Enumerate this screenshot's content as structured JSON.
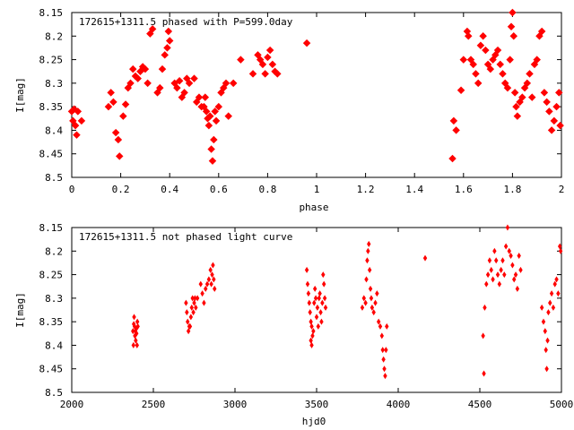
{
  "chart_data": [
    {
      "type": "scatter",
      "title": "172615+1311.5 phased with P=599.0day",
      "xlabel": "phase",
      "ylabel": "I[mag]",
      "xlim": [
        0,
        2
      ],
      "ylim": [
        8.5,
        8.15
      ],
      "y_inverted": true,
      "x_ticks": [
        "0",
        "0.2",
        "0.4",
        "0.6",
        "0.8",
        "1",
        "1.2",
        "1.4",
        "1.6",
        "1.8",
        "2"
      ],
      "x_tick_values": [
        0,
        0.2,
        0.4,
        0.6,
        0.8,
        1.0,
        1.2,
        1.4,
        1.6,
        1.8,
        2.0
      ],
      "y_ticks": [
        "8.15",
        "8.2",
        "8.25",
        "8.3",
        "8.35",
        "8.4",
        "8.45",
        "8.5"
      ],
      "y_tick_values": [
        8.15,
        8.2,
        8.25,
        8.3,
        8.35,
        8.4,
        8.45,
        8.5
      ],
      "marker": "square",
      "color": "#ff0000",
      "grid": false,
      "series": [
        {
          "values": [
            [
              0.0,
              8.36
            ],
            [
              0.005,
              8.38
            ],
            [
              0.01,
              8.355
            ],
            [
              0.015,
              8.39
            ],
            [
              0.02,
              8.41
            ],
            [
              0.025,
              8.36
            ],
            [
              0.04,
              8.38
            ],
            [
              0.15,
              8.35
            ],
            [
              0.16,
              8.32
            ],
            [
              0.17,
              8.34
            ],
            [
              0.18,
              8.405
            ],
            [
              0.19,
              8.42
            ],
            [
              0.195,
              8.455
            ],
            [
              0.21,
              8.37
            ],
            [
              0.22,
              8.345
            ],
            [
              0.23,
              8.31
            ],
            [
              0.24,
              8.3
            ],
            [
              0.25,
              8.27
            ],
            [
              0.26,
              8.285
            ],
            [
              0.27,
              8.29
            ],
            [
              0.28,
              8.275
            ],
            [
              0.29,
              8.265
            ],
            [
              0.3,
              8.27
            ],
            [
              0.31,
              8.3
            ],
            [
              0.32,
              8.195
            ],
            [
              0.33,
              8.185
            ],
            [
              0.35,
              8.32
            ],
            [
              0.36,
              8.31
            ],
            [
              0.37,
              8.27
            ],
            [
              0.38,
              8.24
            ],
            [
              0.39,
              8.225
            ],
            [
              0.395,
              8.19
            ],
            [
              0.4,
              8.21
            ],
            [
              0.42,
              8.3
            ],
            [
              0.43,
              8.31
            ],
            [
              0.44,
              8.295
            ],
            [
              0.45,
              8.33
            ],
            [
              0.46,
              8.32
            ],
            [
              0.47,
              8.29
            ],
            [
              0.48,
              8.3
            ],
            [
              0.5,
              8.29
            ],
            [
              0.51,
              8.34
            ],
            [
              0.52,
              8.33
            ],
            [
              0.53,
              8.35
            ],
            [
              0.54,
              8.35
            ],
            [
              0.545,
              8.33
            ],
            [
              0.55,
              8.36
            ],
            [
              0.555,
              8.375
            ],
            [
              0.56,
              8.39
            ],
            [
              0.565,
              8.37
            ],
            [
              0.57,
              8.44
            ],
            [
              0.575,
              8.465
            ],
            [
              0.58,
              8.42
            ],
            [
              0.585,
              8.36
            ],
            [
              0.59,
              8.38
            ],
            [
              0.6,
              8.35
            ],
            [
              0.61,
              8.32
            ],
            [
              0.62,
              8.31
            ],
            [
              0.63,
              8.3
            ],
            [
              0.64,
              8.37
            ],
            [
              0.66,
              8.3
            ],
            [
              0.69,
              8.25
            ],
            [
              0.74,
              8.28
            ],
            [
              0.76,
              8.24
            ],
            [
              0.77,
              8.25
            ],
            [
              0.78,
              8.26
            ],
            [
              0.79,
              8.28
            ],
            [
              0.8,
              8.245
            ],
            [
              0.81,
              8.23
            ],
            [
              0.82,
              8.26
            ],
            [
              0.83,
              8.275
            ],
            [
              0.84,
              8.28
            ],
            [
              0.96,
              8.215
            ],
            [
              1.555,
              8.46
            ],
            [
              1.56,
              8.38
            ],
            [
              1.57,
              8.4
            ],
            [
              1.59,
              8.315
            ],
            [
              1.6,
              8.25
            ],
            [
              1.615,
              8.19
            ],
            [
              1.62,
              8.2
            ],
            [
              1.63,
              8.25
            ],
            [
              1.64,
              8.26
            ],
            [
              1.65,
              8.28
            ],
            [
              1.66,
              8.3
            ],
            [
              1.67,
              8.22
            ],
            [
              1.68,
              8.2
            ],
            [
              1.69,
              8.23
            ],
            [
              1.7,
              8.26
            ],
            [
              1.71,
              8.27
            ],
            [
              1.72,
              8.25
            ],
            [
              1.73,
              8.24
            ],
            [
              1.74,
              8.23
            ],
            [
              1.75,
              8.26
            ],
            [
              1.76,
              8.28
            ],
            [
              1.77,
              8.3
            ],
            [
              1.78,
              8.31
            ],
            [
              1.79,
              8.25
            ],
            [
              1.795,
              8.18
            ],
            [
              1.8,
              8.15
            ],
            [
              1.805,
              8.2
            ],
            [
              1.81,
              8.32
            ],
            [
              1.815,
              8.35
            ],
            [
              1.82,
              8.37
            ],
            [
              1.83,
              8.34
            ],
            [
              1.84,
              8.33
            ],
            [
              1.85,
              8.31
            ],
            [
              1.86,
              8.3
            ],
            [
              1.87,
              8.28
            ],
            [
              1.88,
              8.33
            ],
            [
              1.89,
              8.26
            ],
            [
              1.9,
              8.25
            ],
            [
              1.91,
              8.2
            ],
            [
              1.92,
              8.19
            ],
            [
              1.93,
              8.32
            ],
            [
              1.94,
              8.34
            ],
            [
              1.95,
              8.36
            ],
            [
              1.96,
              8.4
            ],
            [
              1.97,
              8.38
            ],
            [
              1.98,
              8.35
            ],
            [
              1.99,
              8.32
            ],
            [
              1.995,
              8.39
            ]
          ]
        }
      ]
    },
    {
      "type": "scatter",
      "title": "172615+1311.5 not phased light curve",
      "xlabel": "hjd0",
      "ylabel": "I[mag]",
      "xlim": [
        2000,
        5000
      ],
      "ylim": [
        8.5,
        8.15
      ],
      "y_inverted": true,
      "x_ticks": [
        "2000",
        "2500",
        "3000",
        "3500",
        "4000",
        "4500",
        "5000"
      ],
      "x_tick_values": [
        2000,
        2500,
        3000,
        3500,
        4000,
        4500,
        5000
      ],
      "y_ticks": [
        "8.15",
        "8.2",
        "8.25",
        "8.3",
        "8.35",
        "8.4",
        "8.45",
        "8.5"
      ],
      "y_tick_values": [
        8.15,
        8.2,
        8.25,
        8.3,
        8.35,
        8.4,
        8.45,
        8.5
      ],
      "marker": "diamond",
      "color": "#ff0000",
      "grid": false,
      "series": [
        {
          "values": [
            [
              2375,
              8.37
            ],
            [
              2378,
              8.4
            ],
            [
              2380,
              8.355
            ],
            [
              2382,
              8.34
            ],
            [
              2385,
              8.36
            ],
            [
              2387,
              8.38
            ],
            [
              2390,
              8.37
            ],
            [
              2392,
              8.39
            ],
            [
              2395,
              8.365
            ],
            [
              2397,
              8.375
            ],
            [
              2400,
              8.4
            ],
            [
              2402,
              8.35
            ],
            [
              2405,
              8.36
            ],
            [
              2700,
              8.31
            ],
            [
              2705,
              8.33
            ],
            [
              2710,
              8.35
            ],
            [
              2715,
              8.37
            ],
            [
              2720,
              8.36
            ],
            [
              2725,
              8.36
            ],
            [
              2730,
              8.34
            ],
            [
              2735,
              8.32
            ],
            [
              2740,
              8.3
            ],
            [
              2745,
              8.33
            ],
            [
              2750,
              8.31
            ],
            [
              2755,
              8.3
            ],
            [
              2760,
              8.32
            ],
            [
              2770,
              8.3
            ],
            [
              2790,
              8.27
            ],
            [
              2800,
              8.29
            ],
            [
              2810,
              8.31
            ],
            [
              2820,
              8.28
            ],
            [
              2830,
              8.27
            ],
            [
              2840,
              8.26
            ],
            [
              2850,
              8.24
            ],
            [
              2855,
              8.27
            ],
            [
              2860,
              8.25
            ],
            [
              2865,
              8.23
            ],
            [
              2870,
              8.26
            ],
            [
              2875,
              8.28
            ],
            [
              3440,
              8.24
            ],
            [
              3445,
              8.27
            ],
            [
              3450,
              8.29
            ],
            [
              3455,
              8.31
            ],
            [
              3460,
              8.33
            ],
            [
              3465,
              8.35
            ],
            [
              3470,
              8.36
            ],
            [
              3475,
              8.38
            ],
            [
              3480,
              8.37
            ],
            [
              3485,
              8.31
            ],
            [
              3490,
              8.28
            ],
            [
              3495,
              8.3
            ],
            [
              3500,
              8.34
            ],
            [
              3505,
              8.32
            ],
            [
              3510,
              8.36
            ],
            [
              3515,
              8.3
            ],
            [
              3520,
              8.29
            ],
            [
              3525,
              8.33
            ],
            [
              3530,
              8.35
            ],
            [
              3535,
              8.31
            ],
            [
              3540,
              8.25
            ],
            [
              3545,
              8.27
            ],
            [
              3550,
              8.3
            ],
            [
              3555,
              8.32
            ],
            [
              3470,
              8.4
            ],
            [
              3465,
              8.39
            ],
            [
              3780,
              8.32
            ],
            [
              3790,
              8.3
            ],
            [
              3800,
              8.31
            ],
            [
              3805,
              8.26
            ],
            [
              3810,
              8.22
            ],
            [
              3815,
              8.2
            ],
            [
              3820,
              8.185
            ],
            [
              3825,
              8.24
            ],
            [
              3830,
              8.28
            ],
            [
              3835,
              8.3
            ],
            [
              3840,
              8.32
            ],
            [
              3850,
              8.33
            ],
            [
              3860,
              8.31
            ],
            [
              3870,
              8.29
            ],
            [
              3880,
              8.35
            ],
            [
              3890,
              8.36
            ],
            [
              3900,
              8.38
            ],
            [
              3905,
              8.41
            ],
            [
              3910,
              8.43
            ],
            [
              3915,
              8.45
            ],
            [
              3920,
              8.465
            ],
            [
              3925,
              8.41
            ],
            [
              3930,
              8.36
            ],
            [
              4165,
              8.215
            ],
            [
              4520,
              8.38
            ],
            [
              4525,
              8.46
            ],
            [
              4530,
              8.32
            ],
            [
              4540,
              8.27
            ],
            [
              4550,
              8.25
            ],
            [
              4560,
              8.22
            ],
            [
              4570,
              8.24
            ],
            [
              4580,
              8.26
            ],
            [
              4590,
              8.2
            ],
            [
              4600,
              8.22
            ],
            [
              4610,
              8.25
            ],
            [
              4620,
              8.27
            ],
            [
              4630,
              8.24
            ],
            [
              4640,
              8.22
            ],
            [
              4650,
              8.25
            ],
            [
              4660,
              8.19
            ],
            [
              4670,
              8.15
            ],
            [
              4680,
              8.2
            ],
            [
              4690,
              8.21
            ],
            [
              4700,
              8.23
            ],
            [
              4710,
              8.26
            ],
            [
              4720,
              8.25
            ],
            [
              4730,
              8.28
            ],
            [
              4740,
              8.21
            ],
            [
              4750,
              8.24
            ],
            [
              4880,
              8.32
            ],
            [
              4890,
              8.35
            ],
            [
              4900,
              8.37
            ],
            [
              4905,
              8.41
            ],
            [
              4910,
              8.45
            ],
            [
              4915,
              8.39
            ],
            [
              4920,
              8.33
            ],
            [
              4930,
              8.31
            ],
            [
              4940,
              8.29
            ],
            [
              4950,
              8.32
            ],
            [
              4960,
              8.27
            ],
            [
              4970,
              8.26
            ],
            [
              4980,
              8.29
            ],
            [
              4990,
              8.19
            ],
            [
              4995,
              8.2
            ]
          ]
        }
      ]
    }
  ]
}
